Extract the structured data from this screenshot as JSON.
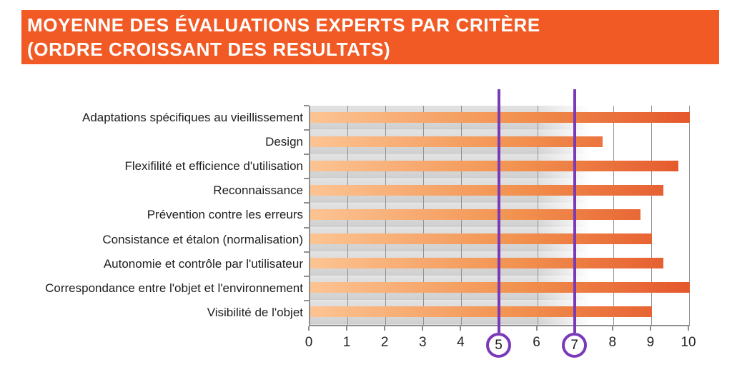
{
  "slide": {
    "title_line1": "MOYENNE DES ÉVALUATIONS EXPERTS PAR CRITÈRE",
    "title_line2": "(ORDRE CROISSANT DES RESULTATS)",
    "colors": {
      "banner_orange": "#f15a25",
      "bar_gradient_light": "#fcc493",
      "bar_gradient_mid": "#f2914f",
      "bar_gradient_dark": "#e4572c",
      "highlight_purple": "#7a3ab8",
      "plot_band_gray": "#d9d9d9",
      "axis_gray": "#8f8f8f"
    }
  },
  "chart_data": {
    "type": "bar",
    "orientation": "horizontal",
    "title": "MOYENNE DES ÉVALUATIONS EXPERTS PAR CRITÈRE (ORDRE CROISSANT DES RESULTATS)",
    "categories": [
      "Adaptations spécifiques au vieillissement",
      "Design",
      "Flexifilité et efficience d'utilisation",
      "Reconnaissance",
      "Prévention contre les erreurs",
      "Consistance et étalon (normalisation)",
      "Autonomie et contrôle par l'utilisateur",
      "Correspondance entre l'objet et l'environnement",
      "Visibilité de l'objet"
    ],
    "values": [
      10,
      7.7,
      9.7,
      9.3,
      8.7,
      9,
      9.3,
      10,
      9
    ],
    "xlim": [
      0,
      10
    ],
    "x_ticks": [
      0,
      1,
      2,
      3,
      4,
      5,
      6,
      7,
      8,
      9,
      10
    ],
    "highlighted_ticks": [
      5,
      7
    ],
    "grid": true,
    "legend": false,
    "ylabel": "",
    "xlabel": ""
  }
}
